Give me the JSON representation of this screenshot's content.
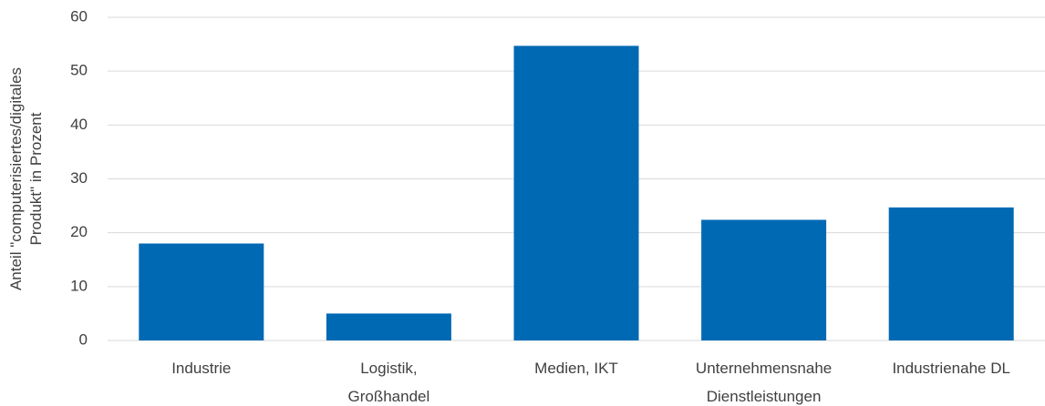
{
  "chart_data": {
    "type": "bar",
    "ylabel": [
      "Anteil \"computerisiertes/digitales",
      "Produkt\" in Prozent"
    ],
    "categories": [
      [
        "Industrie"
      ],
      [
        "Logistik,",
        "Großhandel"
      ],
      [
        "Medien, IKT"
      ],
      [
        "Unternehmensnahe",
        "Dienstleistungen"
      ],
      [
        "Industrienahe DL"
      ]
    ],
    "values": [
      18,
      5,
      54.7,
      22.4,
      24.7
    ],
    "color": "#0069b4",
    "ylim": [
      0,
      60
    ],
    "yticks": [
      0,
      10,
      20,
      30,
      40,
      50,
      60
    ],
    "grid": true
  }
}
